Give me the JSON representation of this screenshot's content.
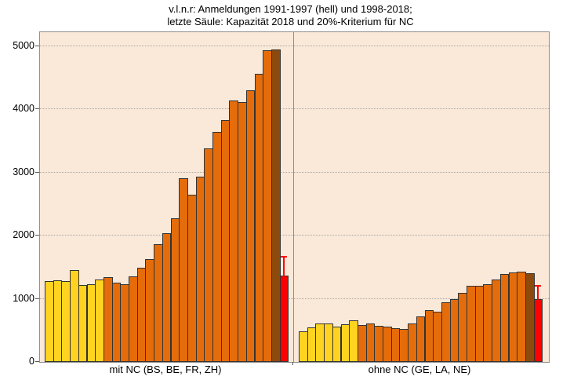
{
  "title": {
    "line1": "v.l.n.r: Anmeldungen 1991-1997 (hell) und 1998-2018;",
    "line2": "letzte Säule: Kapazität 2018 und 20%-Kriterium für NC"
  },
  "chart_data": {
    "type": "bar",
    "title": "v.l.n.r: Anmeldungen 1991-1997 (hell) und 1998-2018; letzte Säule: Kapazität 2018 und 20%-Kriterium für NC",
    "xlabel": "",
    "ylabel": "",
    "ylim": [
      0,
      5220
    ],
    "yticks": [
      0,
      1000,
      2000,
      3000,
      4000,
      5000
    ],
    "grid": "horizontal-dotted",
    "legend": "none",
    "groups": [
      {
        "label": "mit NC (BS, BE, FR, ZH)",
        "anmeldungen_1991_1997_hell": [
          1275,
          1290,
          1280,
          1450,
          1215,
          1235,
          1310
        ],
        "anmeldungen_1998_2018": [
          1345,
          1260,
          1230,
          1350,
          1495,
          1630,
          1870,
          2040,
          2275,
          2910,
          2650,
          2930,
          3380,
          3640,
          3825,
          4140,
          4120,
          4300,
          4560,
          4930,
          4950
        ],
        "kapazitaet_2018": 1370,
        "kriterium_20_prozent": 1670
      },
      {
        "label": "ohne NC (GE, LA, NE)",
        "anmeldungen_1991_1997_hell": [
          490,
          550,
          615,
          610,
          560,
          600,
          660
        ],
        "anmeldungen_1998_2018": [
          580,
          615,
          575,
          560,
          535,
          525,
          610,
          720,
          820,
          790,
          945,
          990,
          1100,
          1205,
          1200,
          1235,
          1300,
          1390,
          1415,
          1430,
          1400
        ],
        "kapazitaet_2018": 990,
        "kriterium_20_prozent": 1210
      }
    ],
    "colors": {
      "hell_1991_1997": "#FFD320",
      "dunkel_1998_2018": "#E46C0A",
      "saeule_2018": "#8C4A0D",
      "kapazitaet_rot": "#FF0000",
      "plot_bg": "#FAE8D8",
      "bar_border": "#333333",
      "frame": "#8F8F8F",
      "grid_dotted": "#A8A8A8"
    }
  }
}
